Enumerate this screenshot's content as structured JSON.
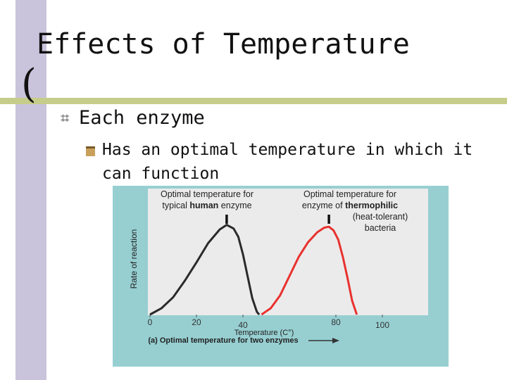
{
  "slide": {
    "title": "Effects of Temperature",
    "bullet1": "Each enzyme",
    "bullet2": "Has an optimal temperature in which it can function"
  },
  "colors": {
    "sidebar": "#c9c3db",
    "title_rule": "#c6cd8a",
    "chart_panel": "#97cfd1",
    "plot_area": "#ecebeb",
    "human_curve": "#2a2a2a",
    "thermophile_curve": "#e8322f"
  },
  "chart_data": {
    "type": "line",
    "title": "",
    "caption": "(a) Optimal temperature for two enzymes",
    "xlabel": "Temperature (C°)",
    "ylabel": "Rate of reaction",
    "xlim": [
      0,
      115
    ],
    "ylim": [
      0,
      1
    ],
    "x_ticks": [
      {
        "value": 0,
        "label": "0"
      },
      {
        "value": 20,
        "label": "20"
      },
      {
        "value": 40,
        "label": "40"
      },
      {
        "value": 80,
        "label": "80"
      },
      {
        "value": 100,
        "label": "100"
      }
    ],
    "series": [
      {
        "color": "#2a2a2a",
        "x": [
          0,
          5,
          10,
          15,
          20,
          25,
          30,
          33,
          36,
          38,
          40,
          42,
          44,
          46,
          47
        ],
        "y": [
          0.0,
          0.07,
          0.19,
          0.37,
          0.57,
          0.78,
          0.93,
          0.98,
          0.94,
          0.85,
          0.66,
          0.42,
          0.18,
          0.03,
          0.0
        ]
      },
      {
        "color": "#e8322f",
        "x": [
          48,
          52,
          56,
          60,
          64,
          68,
          72,
          75,
          77,
          79,
          81,
          83,
          85,
          87,
          89
        ],
        "y": [
          0.0,
          0.07,
          0.21,
          0.42,
          0.63,
          0.79,
          0.9,
          0.95,
          0.96,
          0.92,
          0.82,
          0.63,
          0.4,
          0.15,
          0.0
        ]
      }
    ],
    "annotations": [
      {
        "x": 33,
        "label_lines": [
          [
            {
              "text": "Optimal temperature for",
              "bold": false
            }
          ],
          [
            {
              "text": "typical ",
              "bold": false
            },
            {
              "text": "human",
              "bold": true
            },
            {
              "text": " enzyme",
              "bold": false
            }
          ]
        ]
      },
      {
        "x": 77,
        "label_lines": [
          [
            {
              "text": "Optimal temperature for",
              "bold": false
            }
          ],
          [
            {
              "text": "enzyme of ",
              "bold": false
            },
            {
              "text": "thermophilic",
              "bold": true
            }
          ],
          [
            {
              "text": "(heat-tolerant)",
              "bold": false
            }
          ],
          [
            {
              "text": "bacteria",
              "bold": false
            }
          ]
        ]
      }
    ],
    "grid": false
  }
}
